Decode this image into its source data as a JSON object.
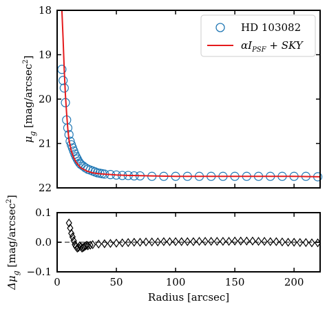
{
  "chart_data": [
    {
      "type": "scatter",
      "ylabel": "μ_g [mag/arcsec²]",
      "ylabel_parts": {
        "sym": "μ",
        "sub": "g",
        "unit": " [mag/arcsec",
        "sup": "2",
        "end": "]"
      },
      "xlim": [
        0,
        222
      ],
      "ylim": [
        22,
        18
      ],
      "y_inverted": true,
      "xticks": [
        0,
        50,
        100,
        150,
        200
      ],
      "yticks": [
        18,
        19,
        20,
        21,
        22
      ],
      "ytick_labels": [
        "18",
        "19",
        "20",
        "21",
        "22"
      ],
      "legend_position": "top-right",
      "series": [
        {
          "name": "HD 103082",
          "marker": "open-circle",
          "color": "#1f77b4",
          "x": [
            4,
            5,
            6,
            7,
            8,
            9,
            10,
            11,
            12,
            13,
            14,
            15,
            16,
            17,
            18,
            19,
            20,
            22,
            24,
            26,
            28,
            30,
            32,
            34,
            36,
            38,
            40,
            45,
            50,
            55,
            60,
            65,
            70,
            80,
            90,
            100,
            110,
            120,
            130,
            140,
            150,
            160,
            170,
            180,
            190,
            200,
            210,
            220
          ],
          "y": [
            19.33,
            19.58,
            19.75,
            20.08,
            20.47,
            20.65,
            20.8,
            20.95,
            21.03,
            21.1,
            21.17,
            21.24,
            21.3,
            21.35,
            21.4,
            21.44,
            21.47,
            21.51,
            21.55,
            21.58,
            21.6,
            21.62,
            21.64,
            21.66,
            21.67,
            21.68,
            21.69,
            21.7,
            21.71,
            21.72,
            21.72,
            21.73,
            21.73,
            21.74,
            21.74,
            21.74,
            21.74,
            21.74,
            21.74,
            21.74,
            21.74,
            21.74,
            21.74,
            21.74,
            21.74,
            21.74,
            21.74,
            21.75
          ]
        },
        {
          "name_parts": {
            "alpha": "α",
            "I": "I",
            "sub": "PSF",
            "rest": " + SKY"
          },
          "marker": "line",
          "color": "#e41a1c",
          "x": [
            4,
            5,
            6,
            7,
            8,
            9,
            10,
            12,
            14,
            16,
            18,
            20,
            25,
            30,
            35,
            40,
            50,
            60,
            80,
            100,
            150,
            200,
            222
          ],
          "y": [
            18.0,
            18.62,
            19.34,
            19.9,
            20.33,
            20.67,
            20.92,
            21.17,
            21.32,
            21.42,
            21.49,
            21.55,
            21.62,
            21.66,
            21.68,
            21.69,
            21.71,
            21.72,
            21.73,
            21.74,
            21.74,
            21.74,
            21.75
          ]
        }
      ]
    },
    {
      "type": "scatter",
      "xlabel": "Radius [arcsec]",
      "ylabel": "Δμ_g [mag/arcsec²]",
      "ylabel_parts": {
        "sym": "Δμ",
        "sub": "g",
        "unit": " [mag/arcsec",
        "sup": "2",
        "end": "]"
      },
      "xlim": [
        0,
        222
      ],
      "ylim": [
        -0.1,
        0.1
      ],
      "xticks": [
        0,
        50,
        100,
        150,
        200
      ],
      "xtick_labels": [
        "0",
        "50",
        "100",
        "150",
        "200"
      ],
      "yticks": [
        -0.1,
        0.0,
        0.1
      ],
      "ytick_labels": [
        "−0.1",
        "0.0",
        "0.1"
      ],
      "reference_line": {
        "y": 0.0,
        "style": "dashed",
        "color": "#808080"
      },
      "series": [
        {
          "marker": "open-diamond",
          "color": "#000000",
          "x": [
            10,
            11,
            12,
            13,
            14,
            15,
            16,
            17,
            18,
            19,
            20,
            21,
            22,
            23,
            24,
            25,
            26,
            28,
            30,
            35,
            40,
            45,
            50,
            55,
            60,
            65,
            70,
            75,
            80,
            85,
            90,
            95,
            100,
            105,
            110,
            115,
            120,
            125,
            130,
            135,
            140,
            145,
            150,
            155,
            160,
            165,
            170,
            175,
            180,
            185,
            190,
            195,
            200,
            205,
            210,
            215,
            220
          ],
          "y": [
            0.065,
            0.048,
            0.03,
            0.018,
            0.005,
            -0.008,
            -0.015,
            -0.02,
            -0.018,
            -0.012,
            -0.015,
            -0.02,
            -0.018,
            -0.015,
            -0.012,
            -0.01,
            -0.012,
            -0.01,
            -0.008,
            -0.006,
            -0.005,
            -0.004,
            -0.003,
            -0.002,
            -0.001,
            0.0,
            0.0,
            0.001,
            0.001,
            0.001,
            0.002,
            0.002,
            0.002,
            0.002,
            0.002,
            0.002,
            0.003,
            0.003,
            0.003,
            0.003,
            0.003,
            0.003,
            0.004,
            0.004,
            0.004,
            0.004,
            0.003,
            0.003,
            0.002,
            0.002,
            0.001,
            0.0,
            0.0,
            -0.001,
            -0.001,
            -0.002,
            -0.002
          ]
        }
      ]
    }
  ]
}
